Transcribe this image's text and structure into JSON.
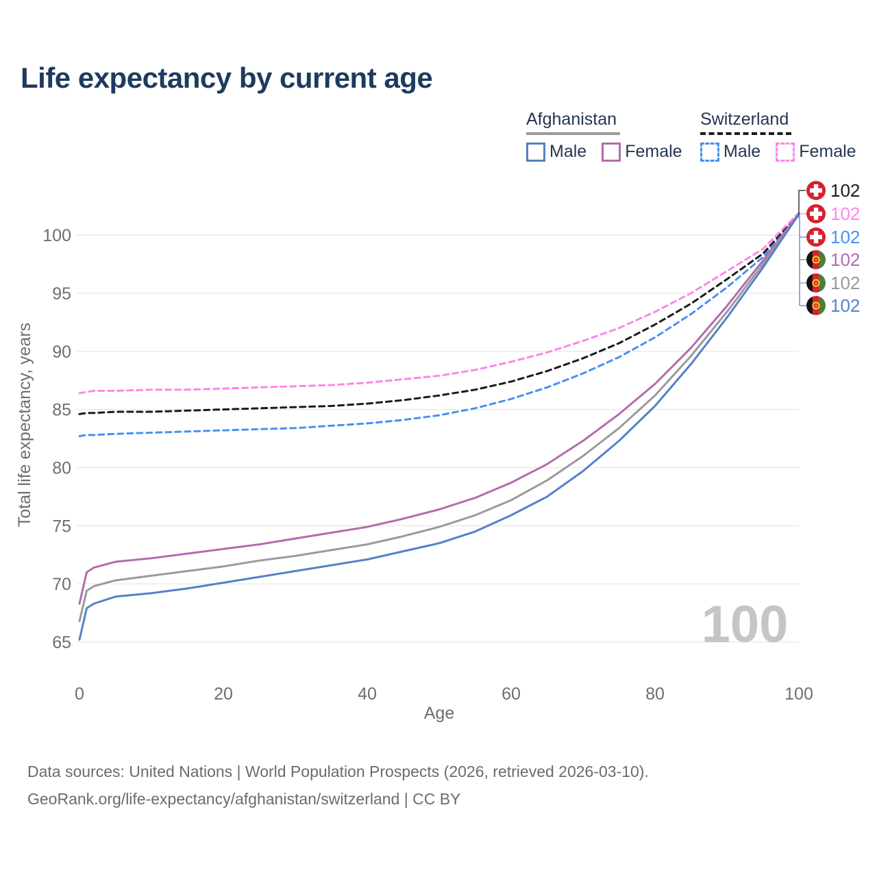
{
  "title": "Life expectancy by current age",
  "watermark": "100",
  "colors": {
    "title_text": "#1e3a5f",
    "legend_text": "#24364f",
    "axis_text": "#6e6e6e",
    "grid": "#e7e7e7",
    "watermark": "#c5c5c5",
    "footer_text": "#6b6b6b",
    "afghanistan_underline": "#9a9a9a",
    "switzerland_underline": "#1a1a1a"
  },
  "legend": {
    "groups": [
      {
        "country": "Afghanistan",
        "line_style": "solid",
        "underline_color": "#9a9a9a",
        "items": [
          {
            "label": "Male",
            "color": "#5580c8",
            "dashed": false
          },
          {
            "label": "Female",
            "color": "#b26cae",
            "dashed": false
          }
        ]
      },
      {
        "country": "Switzerland",
        "line_style": "dashed",
        "underline_color": "#1a1a1a",
        "items": [
          {
            "label": "Male",
            "color": "#4a90f0",
            "dashed": true
          },
          {
            "label": "Female",
            "color": "#ff85e8",
            "dashed": true
          }
        ]
      }
    ]
  },
  "footer": {
    "line1": "Data sources: United Nations | World Population Prospects (2026, retrieved 2026-03-10).",
    "line2": "GeoRank.org/life-expectancy/afghanistan/switzerland | CC BY"
  },
  "chart_data": {
    "type": "line",
    "title": "Life expectancy by current age",
    "xlabel": "Age",
    "ylabel": "Total life expectancy, years",
    "xlim": [
      0,
      100
    ],
    "ylim": [
      65,
      102
    ],
    "xticks": [
      0,
      20,
      40,
      60,
      80,
      100
    ],
    "yticks": [
      65,
      70,
      75,
      80,
      85,
      90,
      95,
      100
    ],
    "grid": "horizontal",
    "legend_position": "top-right",
    "x": [
      0,
      1,
      2,
      5,
      10,
      15,
      20,
      25,
      30,
      35,
      40,
      45,
      50,
      55,
      60,
      65,
      70,
      75,
      80,
      85,
      90,
      95,
      100
    ],
    "series": [
      {
        "name": "Switzerland both sexes",
        "country": "Switzerland",
        "flag": "CHE",
        "color": "#1a1a1a",
        "dashed": true,
        "end_label": "102",
        "values": [
          84.6,
          84.7,
          84.7,
          84.8,
          84.8,
          84.9,
          85.0,
          85.1,
          85.2,
          85.3,
          85.5,
          85.8,
          86.2,
          86.7,
          87.4,
          88.3,
          89.4,
          90.7,
          92.3,
          94.1,
          96.2,
          98.4,
          101.8
        ]
      },
      {
        "name": "Switzerland female",
        "country": "Switzerland",
        "flag": "CHE",
        "color": "#ff85e8",
        "dashed": true,
        "end_label": "102",
        "values": [
          86.4,
          86.5,
          86.6,
          86.6,
          86.7,
          86.7,
          86.8,
          86.9,
          87.0,
          87.1,
          87.3,
          87.6,
          87.9,
          88.4,
          89.1,
          89.9,
          90.9,
          92.0,
          93.4,
          95.0,
          96.9,
          98.8,
          101.9
        ]
      },
      {
        "name": "Switzerland male",
        "country": "Switzerland",
        "flag": "CHE",
        "color": "#4a90f0",
        "dashed": true,
        "end_label": "102",
        "values": [
          82.7,
          82.8,
          82.8,
          82.9,
          83.0,
          83.1,
          83.2,
          83.3,
          83.4,
          83.6,
          83.8,
          84.1,
          84.5,
          85.1,
          85.9,
          86.9,
          88.1,
          89.5,
          91.2,
          93.2,
          95.5,
          98.1,
          101.7
        ]
      },
      {
        "name": "Afghanistan female",
        "country": "Afghanistan",
        "flag": "AFG",
        "color": "#b26cae",
        "dashed": false,
        "end_label": "102",
        "values": [
          68.3,
          71.0,
          71.4,
          71.9,
          72.2,
          72.6,
          73.0,
          73.4,
          73.9,
          74.4,
          74.9,
          75.6,
          76.4,
          77.4,
          78.7,
          80.3,
          82.3,
          84.6,
          87.2,
          90.3,
          93.9,
          97.8,
          101.85
        ]
      },
      {
        "name": "Afghanistan both sexes",
        "country": "Afghanistan",
        "flag": "AFG",
        "color": "#9a9a9a",
        "dashed": false,
        "end_label": "102",
        "values": [
          66.8,
          69.4,
          69.8,
          70.3,
          70.7,
          71.1,
          71.5,
          72.0,
          72.4,
          72.9,
          73.4,
          74.1,
          74.9,
          75.9,
          77.2,
          78.9,
          81.0,
          83.4,
          86.2,
          89.6,
          93.4,
          97.5,
          101.8
        ]
      },
      {
        "name": "Afghanistan male",
        "country": "Afghanistan",
        "flag": "AFG",
        "color": "#5580c8",
        "dashed": false,
        "end_label": "102",
        "values": [
          65.2,
          67.9,
          68.3,
          68.9,
          69.2,
          69.6,
          70.1,
          70.6,
          71.1,
          71.6,
          72.1,
          72.8,
          73.5,
          74.5,
          75.9,
          77.5,
          79.7,
          82.3,
          85.3,
          88.9,
          92.9,
          97.2,
          101.8
        ]
      }
    ]
  }
}
